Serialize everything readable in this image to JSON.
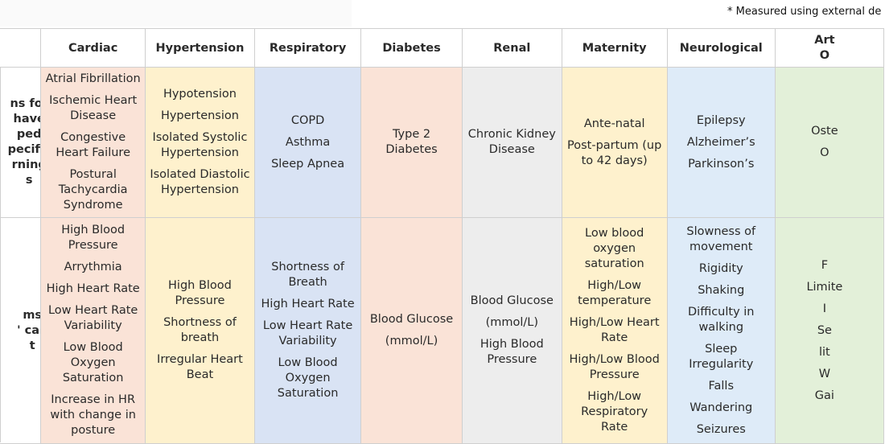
{
  "note": "* Measured using external de",
  "columns": [
    {
      "key": "row-label",
      "label": ""
    },
    {
      "key": "cardiac",
      "label": "Cardiac"
    },
    {
      "key": "hypertension",
      "label": "Hypertension"
    },
    {
      "key": "respiratory",
      "label": "Respiratory"
    },
    {
      "key": "diabetes",
      "label": "Diabetes"
    },
    {
      "key": "renal",
      "label": "Renal"
    },
    {
      "key": "maternity",
      "label": "Maternity"
    },
    {
      "key": "neurological",
      "label": "Neurological"
    },
    {
      "key": "arthritis",
      "label": "Art\nO"
    }
  ],
  "row_labels": [
    "ns for\n have\nped\npecific\nrning\ns",
    "ms\n' can\nt"
  ],
  "conditions": {
    "cardiac": [
      "Atrial Fibrillation",
      "Ischemic Heart Disease",
      "Congestive Heart Failure",
      "Postural Tachycardia Syndrome"
    ],
    "hypertension": [
      "Hypotension",
      "Hypertension",
      "Isolated Systolic Hypertension",
      "Isolated Diastolic Hypertension"
    ],
    "respiratory": [
      "COPD",
      "Asthma",
      "Sleep Apnea"
    ],
    "diabetes": [
      "Type 2 Diabetes"
    ],
    "renal": [
      "Chronic Kidney Disease"
    ],
    "maternity": [
      "Ante-natal",
      "Post-partum (up to 42 days)"
    ],
    "neurological": [
      "Epilepsy",
      "Alzheimer’s",
      "Parkinson’s"
    ],
    "arthritis": [
      "Oste",
      "O"
    ]
  },
  "metrics": {
    "cardiac": [
      "High Blood Pressure",
      "Arrythmia",
      "High Heart Rate",
      "Low Heart Rate Variability",
      "Low Blood Oxygen Saturation",
      "Increase in HR with change in posture"
    ],
    "hypertension": [
      "High Blood Pressure",
      "Shortness of breath",
      "Irregular Heart Beat"
    ],
    "respiratory": [
      "Shortness of Breath",
      "High Heart Rate",
      "Low Heart Rate Variability",
      "Low Blood Oxygen Saturation"
    ],
    "diabetes": [
      "Blood Glucose",
      "(mmol/L)"
    ],
    "renal": [
      "Blood Glucose",
      "(mmol/L)",
      "High Blood Pressure"
    ],
    "maternity": [
      "Low blood oxygen saturation",
      "High/Low temperature",
      "High/Low Heart Rate",
      "High/Low Blood Pressure",
      "High/Low Respiratory Rate"
    ],
    "neurological": [
      "Slowness of movement",
      "Rigidity",
      "Shaking",
      "Difficulty in walking",
      "Sleep Irregularity",
      "Falls",
      "Wandering",
      "Seizures"
    ],
    "arthritis": [
      "F",
      "Limite",
      "I",
      "Se",
      "lit",
      "W",
      "Gai"
    ]
  }
}
